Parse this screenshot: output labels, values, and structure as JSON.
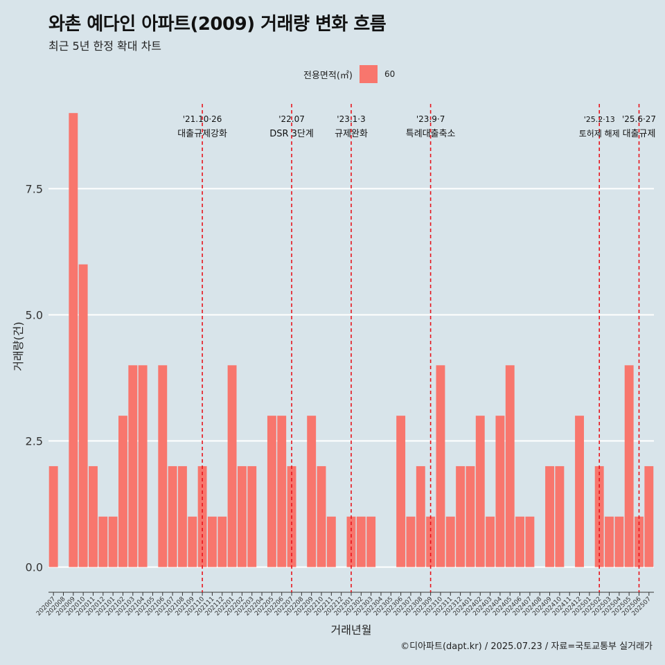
{
  "title": "와촌 예다인 아파트(2009) 거래량 변화 흐름",
  "subtitle": "최근 5년 한정 확대 차트",
  "legend": {
    "title": "전용면적(㎡)",
    "item": "60",
    "color": "#f8766d"
  },
  "caption": "©디아파트(dapt.kr) / 2025.07.23 / 자료=국토교통부 실거래가",
  "chart_data": {
    "type": "bar",
    "xlabel": "거래년월",
    "ylabel": "거래량(건)",
    "ylim": [
      -0.5,
      9.25
    ],
    "yticks": [
      0.0,
      2.5,
      5.0,
      7.5
    ],
    "ytick_labels": [
      "0.0",
      "2.5",
      "5.0",
      "7.5"
    ],
    "grid": true,
    "categories": [
      "202007",
      "202008",
      "202009",
      "202010",
      "202011",
      "202012",
      "202101",
      "202102",
      "202103",
      "202104",
      "202105",
      "202106",
      "202107",
      "202108",
      "202109",
      "202110",
      "202111",
      "202112",
      "202201",
      "202202",
      "202203",
      "202204",
      "202205",
      "202206",
      "202207",
      "202208",
      "202209",
      "202210",
      "202211",
      "202212",
      "202301",
      "202302",
      "202303",
      "202304",
      "202305",
      "202306",
      "202307",
      "202308",
      "202309",
      "202310",
      "202311",
      "202312",
      "202401",
      "202402",
      "202403",
      "202404",
      "202405",
      "202406",
      "202407",
      "202408",
      "202409",
      "202410",
      "202411",
      "202412",
      "202501",
      "202502",
      "202503",
      "202504",
      "202505",
      "202506",
      "202507"
    ],
    "series": [
      {
        "name": "60",
        "color": "#f8766d",
        "values": [
          2,
          0,
          9,
          6,
          2,
          1,
          1,
          3,
          4,
          4,
          0,
          4,
          2,
          2,
          1,
          2,
          1,
          1,
          4,
          2,
          2,
          0,
          3,
          3,
          2,
          0,
          3,
          2,
          1,
          0,
          1,
          1,
          1,
          0,
          0,
          3,
          1,
          2,
          1,
          4,
          1,
          2,
          2,
          3,
          1,
          3,
          4,
          1,
          1,
          0,
          2,
          2,
          0,
          3,
          0,
          2,
          1,
          1,
          4,
          1,
          2
        ]
      }
    ],
    "annotations": [
      {
        "x": "202110",
        "date": "'21.10·26",
        "label": "대출규제강화"
      },
      {
        "x": "202207",
        "date": "'22.07",
        "label": "DSR 3단계"
      },
      {
        "x": "202301",
        "date": "'23.1·3",
        "label": "규제완화"
      },
      {
        "x": "202309",
        "date": "'23.9·7",
        "label": "특례대출축소"
      },
      {
        "x": "202502",
        "date": "'25.2·13",
        "label": "토허제 해제"
      },
      {
        "x": "202506",
        "date": "'25.6·27",
        "label": "대출규제"
      }
    ]
  }
}
